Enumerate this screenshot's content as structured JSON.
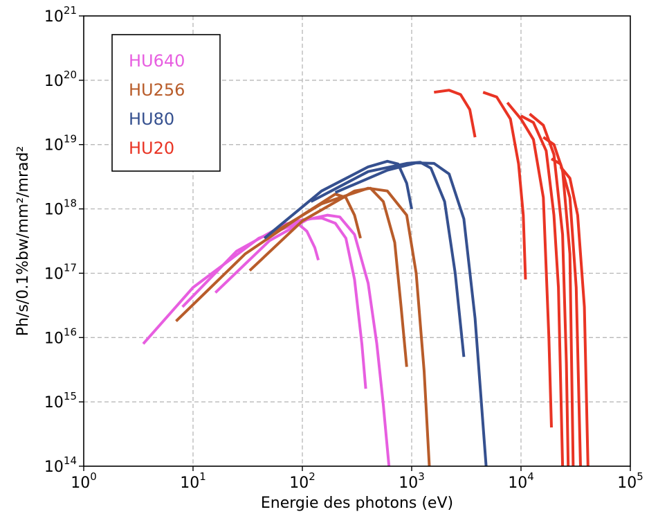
{
  "chart_data": {
    "type": "line",
    "xscale": "log",
    "yscale": "log",
    "xlabel": "Energie des photons (eV)",
    "ylabel": "Ph/s/0.1%bw/mm²/mrad²",
    "xlim": [
      1,
      100000
    ],
    "ylim": [
      100000000000000.0,
      1e+21
    ],
    "grid": true,
    "legend_position": "upper-left",
    "x_ticks": [
      {
        "base": "10",
        "exp": "0",
        "value": 1
      },
      {
        "base": "10",
        "exp": "1",
        "value": 10
      },
      {
        "base": "10",
        "exp": "2",
        "value": 100
      },
      {
        "base": "10",
        "exp": "3",
        "value": 1000
      },
      {
        "base": "10",
        "exp": "4",
        "value": 10000
      },
      {
        "base": "10",
        "exp": "5",
        "value": 100000
      }
    ],
    "y_ticks": [
      {
        "base": "10",
        "exp": "14",
        "value": 100000000000000.0
      },
      {
        "base": "10",
        "exp": "15",
        "value": 1000000000000000.0
      },
      {
        "base": "10",
        "exp": "16",
        "value": 1e+16
      },
      {
        "base": "10",
        "exp": "17",
        "value": 1e+17
      },
      {
        "base": "10",
        "exp": "18",
        "value": 1e+18
      },
      {
        "base": "10",
        "exp": "19",
        "value": 1e+19
      },
      {
        "base": "10",
        "exp": "20",
        "value": 1e+20
      },
      {
        "base": "10",
        "exp": "21",
        "value": 1e+21
      }
    ],
    "series": [
      {
        "name": "HU640",
        "color": "#e75ee0",
        "curves": [
          [
            [
              3.5,
              8000000000000000.0
            ],
            [
              10,
              6e+16
            ],
            [
              40,
              3.5e+17
            ],
            [
              90,
              6e+17
            ],
            [
              110,
              4.5e+17
            ],
            [
              130,
              2.5e+17
            ],
            [
              140,
              1.6e+17
            ]
          ],
          [
            [
              8,
              3e+16
            ],
            [
              25,
              2.2e+17
            ],
            [
              70,
              5.8e+17
            ],
            [
              110,
              7e+17
            ],
            [
              150,
              7.2e+17
            ],
            [
              200,
              6e+17
            ],
            [
              250,
              3.5e+17
            ],
            [
              300,
              8e+16
            ],
            [
              350,
              8000000000000000.0
            ],
            [
              380,
              1600000000000000.0
            ]
          ],
          [
            [
              16,
              5e+16
            ],
            [
              50,
              3.2e+17
            ],
            [
              110,
              6.8e+17
            ],
            [
              170,
              8e+17
            ],
            [
              220,
              7.5e+17
            ],
            [
              300,
              4e+17
            ],
            [
              400,
              7e+16
            ],
            [
              480,
              8000000000000000.0
            ],
            [
              550,
              900000000000000.0
            ],
            [
              620,
              100000000000000.0
            ]
          ]
        ]
      },
      {
        "name": "HU256",
        "color": "#b85c2a",
        "curves": [
          [
            [
              7,
              1.8e+16
            ],
            [
              30,
              2e+17
            ],
            [
              100,
              8e+17
            ],
            [
              200,
              1.7e+18
            ],
            [
              250,
              1.5e+18
            ],
            [
              300,
              8e+17
            ],
            [
              340,
              3.5e+17
            ]
          ],
          [
            [
              33,
              1.1e+17
            ],
            [
              100,
              6.5e+17
            ],
            [
              300,
              1.9e+18
            ],
            [
              420,
              2.1e+18
            ],
            [
              550,
              1.3e+18
            ],
            [
              700,
              3e+17
            ],
            [
              800,
              3e+16
            ],
            [
              900,
              3500000000000000.0
            ]
          ],
          [
            [
              45,
              3.5e+17
            ],
            [
              150,
              1.2e+18
            ],
            [
              400,
              2.1e+18
            ],
            [
              600,
              1.9e+18
            ],
            [
              900,
              8e+17
            ],
            [
              1100,
              1e+17
            ],
            [
              1300,
              3000000000000000.0
            ],
            [
              1450,
              100000000000000.0
            ]
          ]
        ]
      },
      {
        "name": "HU80",
        "color": "#35508f",
        "curves": [
          [
            [
              45,
              3.5e+17
            ],
            [
              150,
              1.9e+18
            ],
            [
              400,
              4.5e+18
            ],
            [
              600,
              5.5e+18
            ],
            [
              750,
              5e+18
            ],
            [
              900,
              2.5e+18
            ],
            [
              1000,
              1e+18
            ]
          ],
          [
            [
              120,
              1.3e+18
            ],
            [
              400,
              3.8e+18
            ],
            [
              900,
              5.1e+18
            ],
            [
              1200,
              5.3e+18
            ],
            [
              1500,
              4.3e+18
            ],
            [
              2000,
              1.3e+18
            ],
            [
              2500,
              1e+17
            ],
            [
              3000,
              5000000000000000.0
            ]
          ],
          [
            [
              200,
              1.8e+18
            ],
            [
              600,
              4e+18
            ],
            [
              1100,
              5.2e+18
            ],
            [
              1600,
              5.1e+18
            ],
            [
              2200,
              3.5e+18
            ],
            [
              3000,
              7e+17
            ],
            [
              3800,
              2e+16
            ],
            [
              4800,
              100000000000000.0
            ]
          ]
        ]
      },
      {
        "name": "HU20",
        "color": "#e93424",
        "curves": [
          [
            [
              1600,
              6.5e+19
            ],
            [
              2200,
              7e+19
            ],
            [
              2800,
              6e+19
            ],
            [
              3400,
              3.5e+19
            ],
            [
              3800,
              1.3e+19
            ]
          ],
          [
            [
              4500,
              6.5e+19
            ],
            [
              6000,
              5.5e+19
            ],
            [
              8000,
              2.5e+19
            ],
            [
              9500,
              5e+18
            ],
            [
              10500,
              8e+17
            ],
            [
              11000,
              8e+16
            ]
          ],
          [
            [
              7500,
              4.5e+19
            ],
            [
              10000,
              2.5e+19
            ],
            [
              13000,
              1.2e+19
            ],
            [
              16000,
              1.5e+18
            ],
            [
              18000,
              1e+16
            ],
            [
              19000,
              400000000000000.0
            ]
          ],
          [
            [
              10000,
              2.8e+19
            ],
            [
              13000,
              2.2e+19
            ],
            [
              17000,
              8e+18
            ],
            [
              20000,
              8e+17
            ],
            [
              22000,
              6e+16
            ],
            [
              24000,
              100000000000000.0
            ]
          ],
          [
            [
              12000,
              3e+19
            ],
            [
              16000,
              2e+19
            ],
            [
              20000,
              7e+18
            ],
            [
              24000,
              4e+17
            ],
            [
              26000,
              4000000000000000.0
            ],
            [
              27000,
              100000000000000.0
            ]
          ],
          [
            [
              16000,
              1.3e+19
            ],
            [
              20000,
              1e+19
            ],
            [
              24000,
              4e+18
            ],
            [
              28000,
              2e+17
            ],
            [
              30000,
              100000000000000.0
            ]
          ],
          [
            [
              19000,
              6e+18
            ],
            [
              23000,
              5e+18
            ],
            [
              28000,
              1.5e+18
            ],
            [
              32000,
              6e+16
            ],
            [
              35000,
              100000000000000.0
            ]
          ],
          [
            [
              23000,
              4.5e+18
            ],
            [
              28000,
              3e+18
            ],
            [
              33000,
              8e+17
            ],
            [
              38000,
              3e+16
            ],
            [
              41000,
              100000000000000.0
            ]
          ]
        ]
      }
    ]
  }
}
